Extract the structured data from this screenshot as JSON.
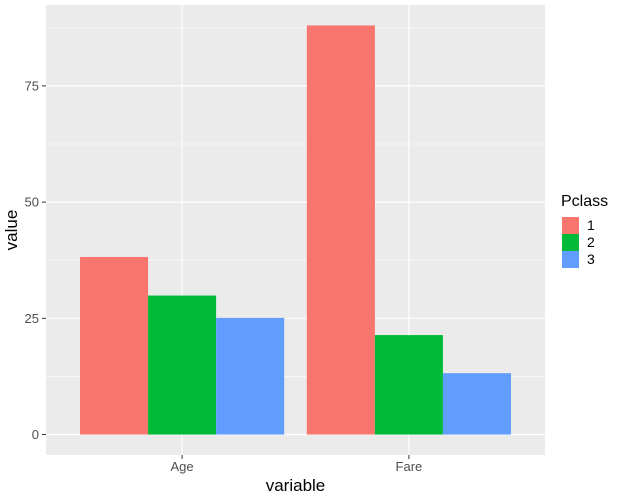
{
  "chart_data": {
    "type": "bar",
    "categories": [
      "Age",
      "Fare"
    ],
    "series": [
      {
        "name": "1",
        "values": [
          38.2,
          88.0
        ]
      },
      {
        "name": "2",
        "values": [
          29.9,
          21.4
        ]
      },
      {
        "name": "3",
        "values": [
          25.1,
          13.2
        ]
      }
    ],
    "xlabel": "variable",
    "ylabel": "value",
    "yticks": [
      0,
      25,
      50,
      75
    ],
    "ylim": [
      -4.4,
      92.4
    ],
    "legend": {
      "title": "Pclass",
      "position": "right"
    },
    "colors": [
      "#F8766D",
      "#00BA38",
      "#619CFF"
    ],
    "panel_background": "#EBEBEB",
    "grid": true
  }
}
